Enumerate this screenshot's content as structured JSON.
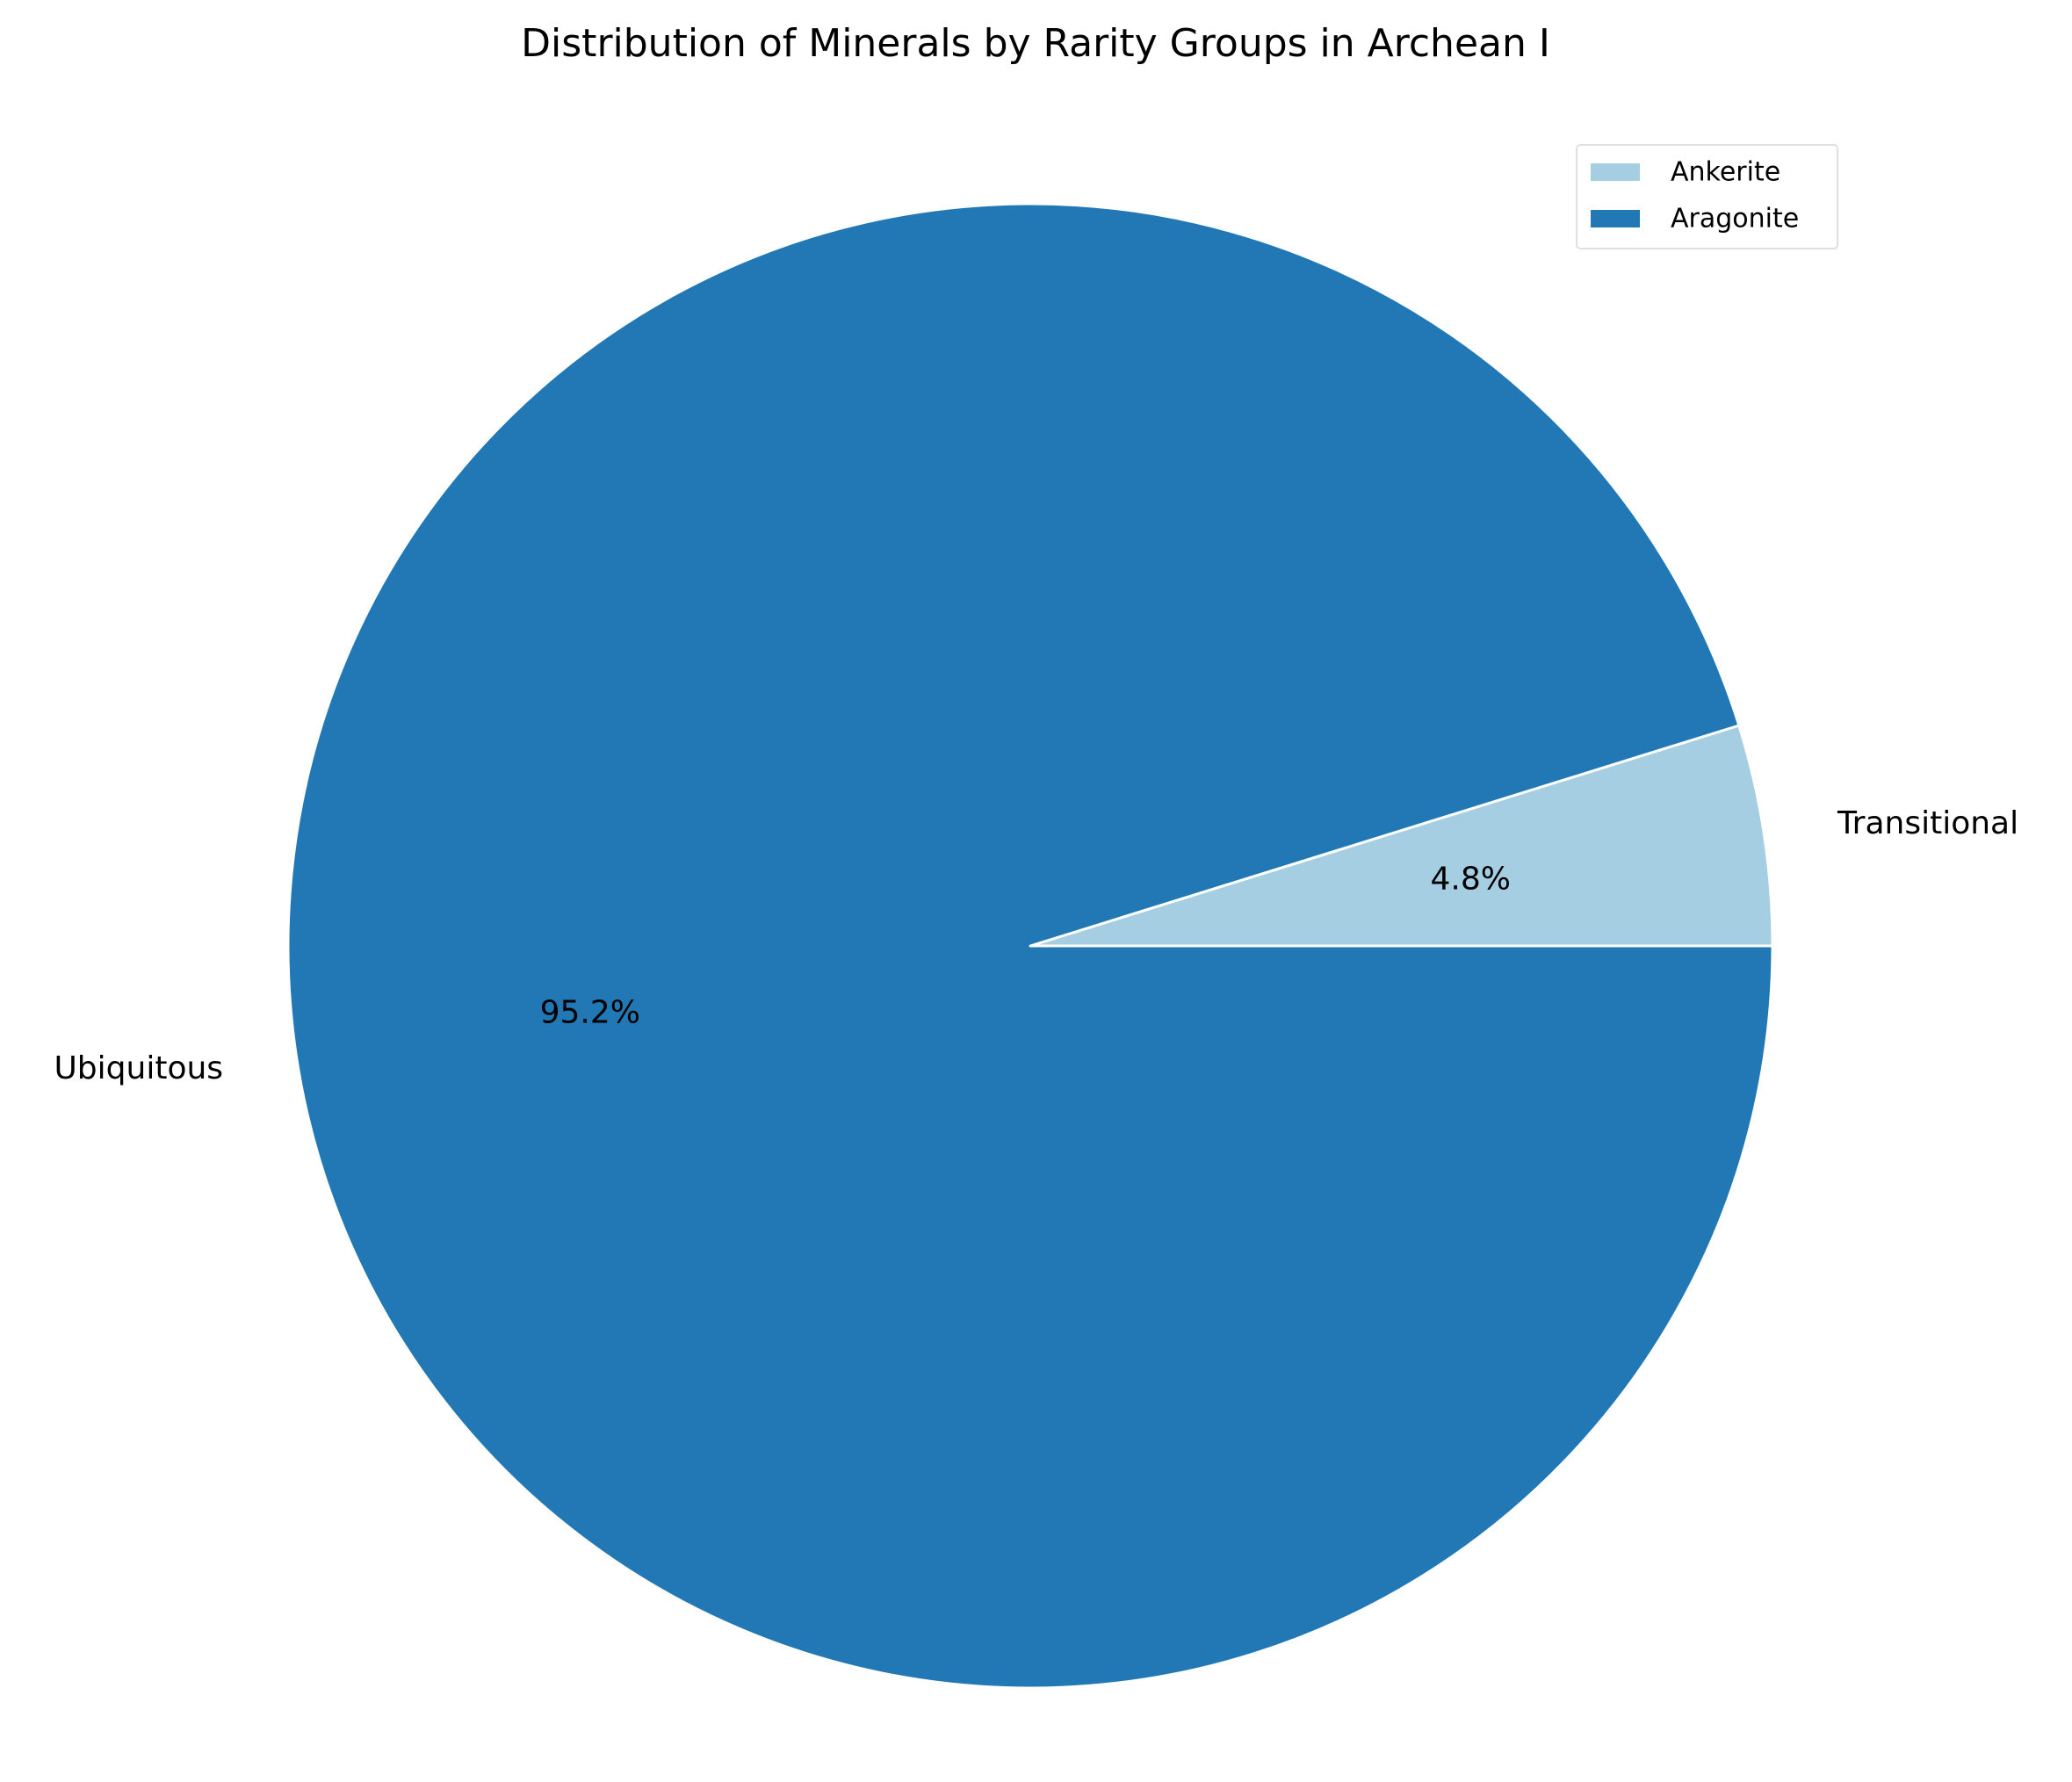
{
  "chart_data": {
    "type": "pie",
    "title": "Distribution of Minerals by Rarity Groups in Archean I",
    "slices": [
      {
        "label": "Transitional",
        "legend": "Ankerite",
        "value": 4.8,
        "pct_label": "4.8%",
        "color": "#a6cee3"
      },
      {
        "label": "Ubiquitous",
        "legend": "Aragonite",
        "value": 95.2,
        "pct_label": "95.2%",
        "color": "#2178b4"
      }
    ],
    "start_angle_deg": 0,
    "direction": "counterclockwise",
    "edge_color": "#ffffff",
    "legend_position": "top-right"
  }
}
